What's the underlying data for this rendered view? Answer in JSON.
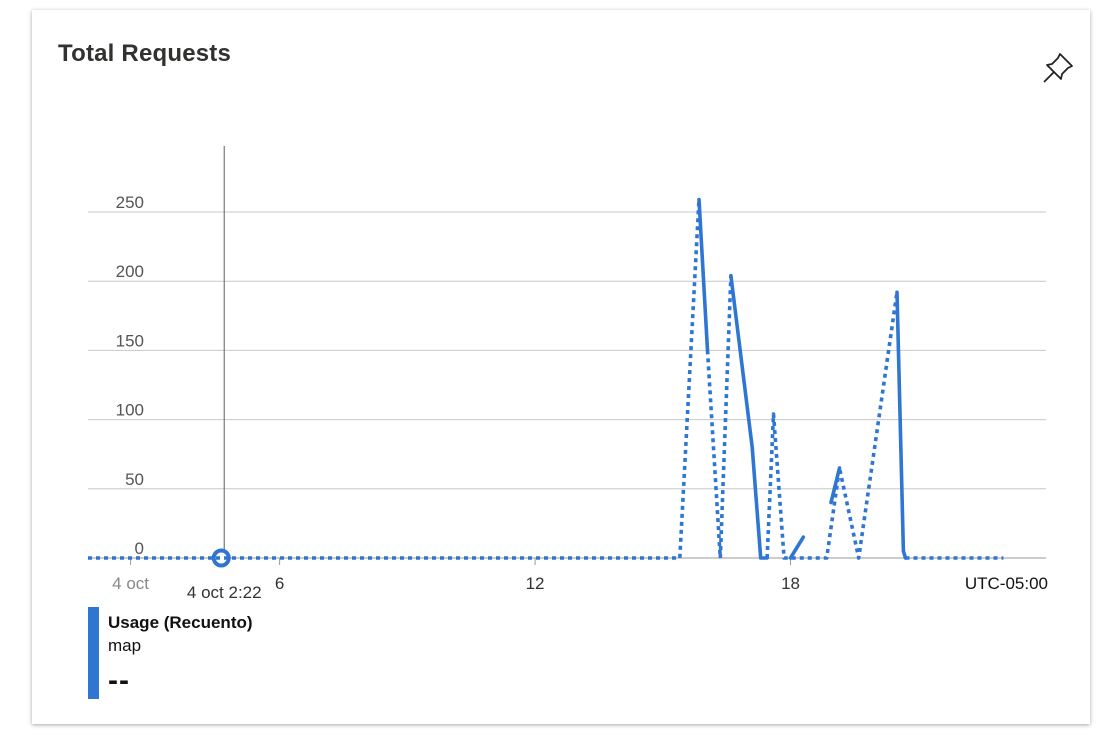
{
  "card": {
    "title": "Total Requests",
    "pin_icon": "pin-icon"
  },
  "chart_data": {
    "type": "line",
    "title": "Total Requests",
    "ylim": [
      0,
      250
    ],
    "yticks": [
      0,
      50,
      100,
      150,
      200,
      250
    ],
    "xlim": [
      1.5,
      24
    ],
    "xticks": [
      {
        "x": 2.5,
        "label": "4 oct",
        "style": "muted"
      },
      {
        "x": 6,
        "label": "6"
      },
      {
        "x": 12,
        "label": "12"
      },
      {
        "x": 18,
        "label": "18"
      }
    ],
    "timezone_label": "UTC-05:00",
    "cursor": {
      "x": 4.7,
      "label": "4 oct 2:22"
    },
    "grid": true,
    "color": "#2f76d3",
    "series": [
      {
        "name": "Usage (Recuento)",
        "dashed_segments": [
          [
            [
              1.5,
              0
            ],
            [
              15.4,
              0
            ],
            [
              15.85,
              259
            ]
          ],
          [
            [
              16.05,
              150
            ],
            [
              16.35,
              0
            ],
            [
              16.6,
              204
            ]
          ],
          [
            [
              17.45,
              0
            ],
            [
              17.6,
              104
            ],
            [
              17.85,
              0
            ],
            [
              18.3,
              0
            ],
            [
              18.85,
              0
            ],
            [
              19.15,
              65
            ],
            [
              19.6,
              0
            ],
            [
              20.5,
              192
            ]
          ],
          [
            [
              20.7,
              0
            ],
            [
              23.0,
              0
            ]
          ]
        ],
        "solid_segments": [
          [
            [
              15.85,
              259
            ],
            [
              16.05,
              150
            ]
          ],
          [
            [
              16.6,
              204
            ],
            [
              17.1,
              80
            ],
            [
              17.3,
              0
            ],
            [
              17.45,
              0
            ]
          ],
          [
            [
              18.0,
              0
            ],
            [
              18.3,
              15
            ]
          ],
          [
            [
              18.95,
              40
            ],
            [
              19.15,
              65
            ]
          ],
          [
            [
              20.5,
              192
            ],
            [
              20.65,
              5
            ],
            [
              20.7,
              0
            ]
          ]
        ]
      }
    ]
  },
  "legend": {
    "name": "Usage (Recuento)",
    "sub": "map",
    "value": "--",
    "color": "#2f76d3"
  }
}
